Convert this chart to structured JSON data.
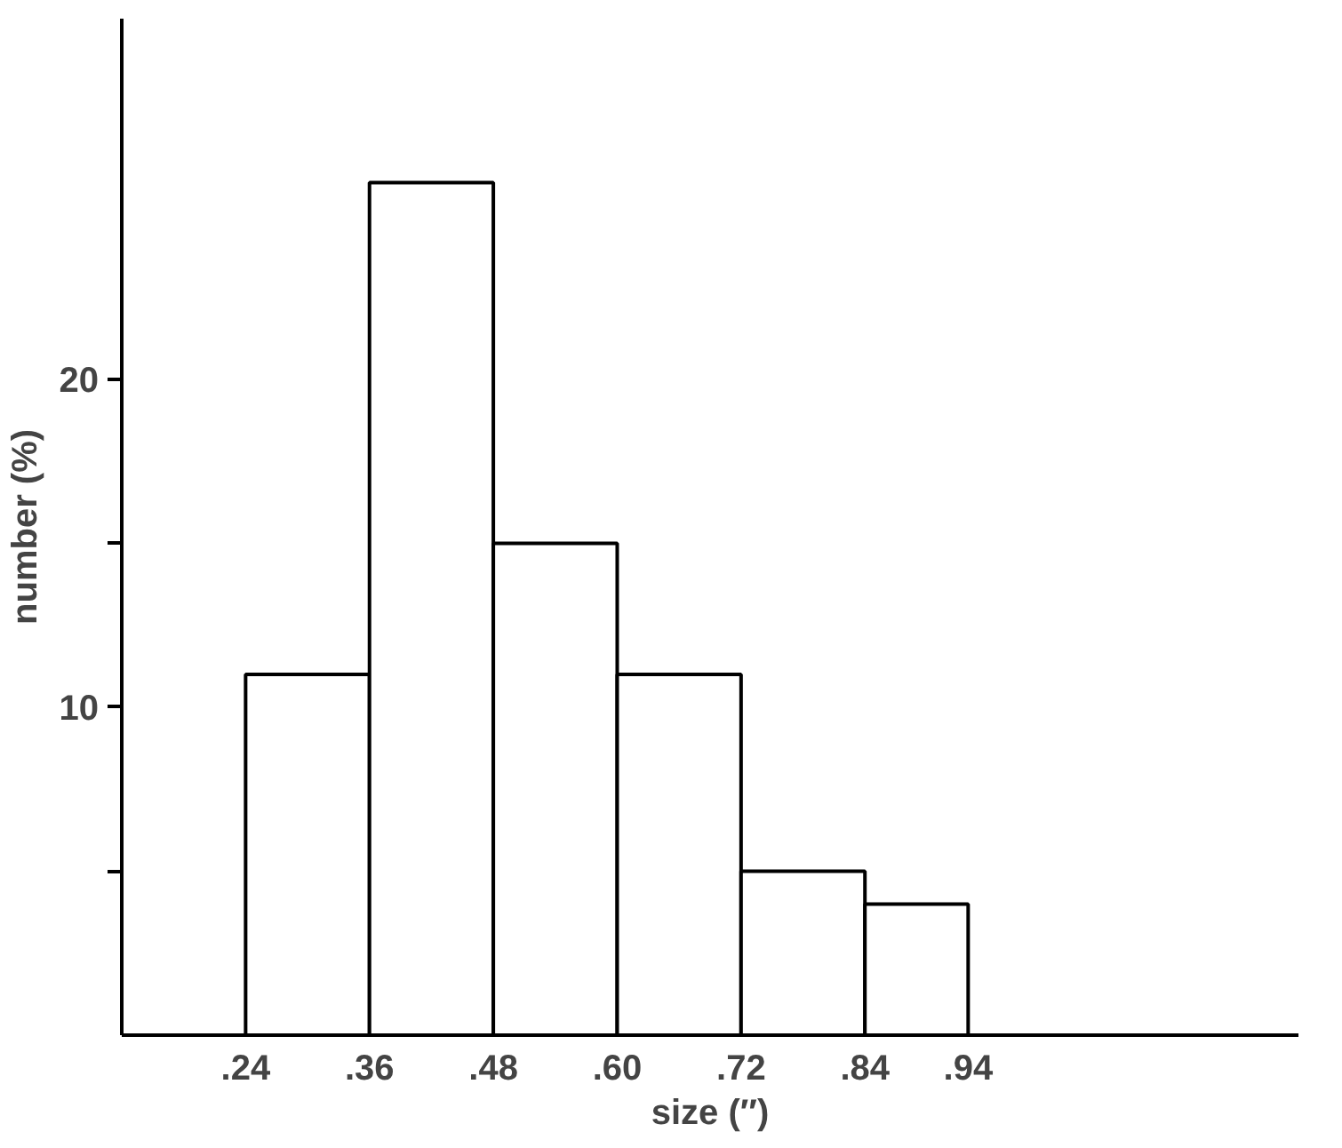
{
  "chart_data": {
    "type": "histogram",
    "xlabel": "size (″)",
    "ylabel": "number (%)",
    "bins": [
      0.24,
      0.36,
      0.48,
      0.6,
      0.72,
      0.84,
      0.94
    ],
    "values": [
      11,
      26,
      15,
      11,
      5,
      4
    ],
    "color": "#ffffff",
    "xlim": [
      0.12,
      1.26
    ],
    "ylim": [
      0,
      31
    ],
    "xticks": [
      {
        "value": 0.24,
        "label": ".24"
      },
      {
        "value": 0.36,
        "label": ".36"
      },
      {
        "value": 0.48,
        "label": ".48"
      },
      {
        "value": 0.6,
        "label": ".60"
      },
      {
        "value": 0.72,
        "label": ".72"
      },
      {
        "value": 0.84,
        "label": ".84"
      },
      {
        "value": 0.94,
        "label": ".94"
      }
    ],
    "yticks": [
      {
        "value": 5,
        "label": null
      },
      10,
      {
        "value": 15,
        "label": null
      },
      20
    ],
    "grid": false
  }
}
